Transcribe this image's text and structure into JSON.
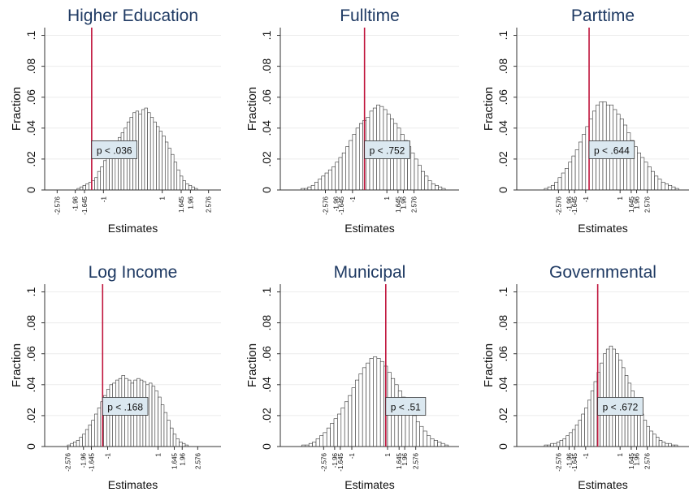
{
  "figure": {
    "colors": {
      "title": "#1f3a63",
      "bar_fill": "#ffffff",
      "bar_stroke": "#333333",
      "vline": "#c0143c",
      "grid": "#ececec",
      "annot_fill": "#dbe8f0",
      "annot_stroke": "#333333"
    }
  },
  "chart_data": [
    {
      "type": "bar",
      "title": "Higher Education",
      "xlabel": "Estimates",
      "ylabel": "Fraction",
      "xlim": [
        -3.0,
        3.0
      ],
      "ylim": [
        0,
        0.105
      ],
      "yticks": [
        0,
        0.02,
        0.04,
        0.06,
        0.08,
        0.1
      ],
      "ytick_labels": [
        "0",
        ".02",
        ".04",
        ".06",
        ".08",
        ".1"
      ],
      "xticks": [
        -2.576,
        -1.96,
        -1.645,
        -1,
        1,
        1.645,
        1.96,
        2.576
      ],
      "xtick_labels": [
        "-2.576",
        "-1.96",
        "-1.645",
        "-1",
        "1",
        "1.645",
        "1.96",
        "2.576"
      ],
      "bin_start": -1.9,
      "bin_width": 0.1,
      "values": [
        0.001,
        0.002,
        0.003,
        0.004,
        0.005,
        0.006,
        0.008,
        0.012,
        0.015,
        0.019,
        0.022,
        0.025,
        0.028,
        0.031,
        0.034,
        0.037,
        0.04,
        0.044,
        0.047,
        0.05,
        0.051,
        0.049,
        0.052,
        0.053,
        0.05,
        0.047,
        0.044,
        0.041,
        0.038,
        0.035,
        0.031,
        0.027,
        0.023,
        0.018,
        0.013,
        0.009,
        0.006,
        0.004,
        0.003,
        0.002,
        0.001
      ],
      "vline": -1.4,
      "annotation": "p < .036",
      "annot_x": -1.4,
      "annot_y": 0.026
    },
    {
      "type": "bar",
      "title": "Fulltime",
      "xlabel": "Estimates",
      "ylabel": "Fraction",
      "xlim": [
        -5.2,
        5.2
      ],
      "ylim": [
        0,
        0.105
      ],
      "yticks": [
        0,
        0.02,
        0.04,
        0.06,
        0.08,
        0.1
      ],
      "ytick_labels": [
        "0",
        ".02",
        ".04",
        ".06",
        ".08",
        ".1"
      ],
      "xticks": [
        -2.576,
        -1.96,
        -1.645,
        -1,
        1,
        1.645,
        1.96,
        2.576
      ],
      "xtick_labels": [
        "-2.576",
        "-1.96",
        "-1.645",
        "-1",
        "1",
        "1.645",
        "1.96",
        "2.576"
      ],
      "bin_start": -4.0,
      "bin_width": 0.2,
      "values": [
        0.001,
        0.001,
        0.002,
        0.003,
        0.005,
        0.007,
        0.009,
        0.011,
        0.013,
        0.015,
        0.018,
        0.021,
        0.024,
        0.028,
        0.032,
        0.036,
        0.04,
        0.043,
        0.045,
        0.047,
        0.051,
        0.053,
        0.055,
        0.054,
        0.052,
        0.049,
        0.046,
        0.043,
        0.04,
        0.036,
        0.032,
        0.028,
        0.024,
        0.02,
        0.016,
        0.012,
        0.009,
        0.006,
        0.004,
        0.003,
        0.002,
        0.001
      ],
      "vline": -0.3,
      "annotation": "p < .752",
      "annot_x": -0.3,
      "annot_y": 0.026
    },
    {
      "type": "bar",
      "title": "Parttime",
      "xlabel": "Estimates",
      "ylabel": "Fraction",
      "xlim": [
        -5.0,
        5.0
      ],
      "ylim": [
        0,
        0.105
      ],
      "yticks": [
        0,
        0.02,
        0.04,
        0.06,
        0.08,
        0.1
      ],
      "ytick_labels": [
        "0",
        ".02",
        ".04",
        ".06",
        ".08",
        ".1"
      ],
      "xticks": [
        -2.576,
        -1.96,
        -1.645,
        -1,
        1,
        1.645,
        1.96,
        2.576
      ],
      "xtick_labels": [
        "-2.576",
        "-1.96",
        "-1.645",
        "-1",
        "1",
        "1.645",
        "1.96",
        "2.576"
      ],
      "bin_start": -3.4,
      "bin_width": 0.2,
      "values": [
        0.001,
        0.002,
        0.003,
        0.005,
        0.008,
        0.011,
        0.014,
        0.018,
        0.022,
        0.026,
        0.031,
        0.036,
        0.041,
        0.046,
        0.051,
        0.055,
        0.057,
        0.057,
        0.055,
        0.055,
        0.052,
        0.049,
        0.046,
        0.042,
        0.037,
        0.032,
        0.028,
        0.024,
        0.021,
        0.018,
        0.015,
        0.012,
        0.009,
        0.007,
        0.005,
        0.004,
        0.003,
        0.002,
        0.001
      ],
      "vline": -0.8,
      "annotation": "p < .644",
      "annot_x": -0.8,
      "annot_y": 0.026
    },
    {
      "type": "bar",
      "title": "Log Income",
      "xlabel": "Estimates",
      "ylabel": "Fraction",
      "xlim": [
        -3.5,
        3.5
      ],
      "ylim": [
        0,
        0.105
      ],
      "yticks": [
        0,
        0.02,
        0.04,
        0.06,
        0.08,
        0.1
      ],
      "ytick_labels": [
        "0",
        ".02",
        ".04",
        ".06",
        ".08",
        ".1"
      ],
      "xticks": [
        -2.576,
        -1.96,
        -1.645,
        -1,
        1,
        1.645,
        1.96,
        2.576
      ],
      "xtick_labels": [
        "-2.576",
        "-1.96",
        "-1.645",
        "-1",
        "1",
        "1.645",
        "1.96",
        "2.576"
      ],
      "bin_start": -2.6,
      "bin_width": 0.12,
      "values": [
        0.001,
        0.002,
        0.003,
        0.004,
        0.006,
        0.008,
        0.011,
        0.014,
        0.017,
        0.021,
        0.025,
        0.029,
        0.033,
        0.037,
        0.04,
        0.041,
        0.043,
        0.044,
        0.046,
        0.044,
        0.043,
        0.041,
        0.043,
        0.044,
        0.043,
        0.042,
        0.04,
        0.041,
        0.039,
        0.036,
        0.032,
        0.027,
        0.022,
        0.017,
        0.012,
        0.008,
        0.005,
        0.003,
        0.002,
        0.001
      ],
      "vline": -1.2,
      "annotation": "p < .168",
      "annot_x": -1.2,
      "annot_y": 0.026
    },
    {
      "type": "bar",
      "title": "Municipal",
      "xlabel": "Estimates",
      "ylabel": "Fraction",
      "xlim": [
        -5.0,
        5.0
      ],
      "ylim": [
        0,
        0.105
      ],
      "yticks": [
        0,
        0.02,
        0.04,
        0.06,
        0.08,
        0.1
      ],
      "ytick_labels": [
        "0",
        ".02",
        ".04",
        ".06",
        ".08",
        ".1"
      ],
      "xticks": [
        -2.576,
        -1.96,
        -1.645,
        -1,
        1,
        1.645,
        1.96,
        2.576
      ],
      "xtick_labels": [
        "-2.576",
        "-1.96",
        "-1.645",
        "-1",
        "1",
        "1.645",
        "1.96",
        "2.576"
      ],
      "bin_start": -3.8,
      "bin_width": 0.2,
      "values": [
        0.001,
        0.001,
        0.002,
        0.003,
        0.005,
        0.007,
        0.009,
        0.012,
        0.015,
        0.018,
        0.021,
        0.025,
        0.029,
        0.033,
        0.038,
        0.043,
        0.047,
        0.051,
        0.054,
        0.057,
        0.058,
        0.057,
        0.055,
        0.052,
        0.048,
        0.044,
        0.04,
        0.036,
        0.032,
        0.028,
        0.024,
        0.02,
        0.016,
        0.013,
        0.01,
        0.007,
        0.005,
        0.004,
        0.003,
        0.002,
        0.001
      ],
      "vline": 0.9,
      "annotation": "p < .51",
      "annot_x": 0.9,
      "annot_y": 0.026
    },
    {
      "type": "bar",
      "title": "Governmental",
      "xlabel": "Estimates",
      "ylabel": "Fraction",
      "xlim": [
        -5.0,
        5.0
      ],
      "ylim": [
        0,
        0.105
      ],
      "yticks": [
        0,
        0.02,
        0.04,
        0.06,
        0.08,
        0.1
      ],
      "ytick_labels": [
        "0",
        ".02",
        ".04",
        ".06",
        ".08",
        ".1"
      ],
      "xticks": [
        -2.576,
        -1.96,
        -1.645,
        -1,
        1,
        1.645,
        1.96,
        2.576
      ],
      "xtick_labels": [
        "-2.576",
        "-1.96",
        "-1.645",
        "-1",
        "1",
        "1.645",
        "1.96",
        "2.576"
      ],
      "bin_start": -3.4,
      "bin_width": 0.18,
      "values": [
        0.001,
        0.001,
        0.002,
        0.002,
        0.003,
        0.004,
        0.005,
        0.007,
        0.009,
        0.011,
        0.014,
        0.017,
        0.021,
        0.025,
        0.03,
        0.036,
        0.042,
        0.048,
        0.054,
        0.06,
        0.063,
        0.065,
        0.063,
        0.06,
        0.056,
        0.051,
        0.046,
        0.041,
        0.036,
        0.031,
        0.026,
        0.021,
        0.017,
        0.013,
        0.01,
        0.008,
        0.006,
        0.004,
        0.003,
        0.002,
        0.002,
        0.001,
        0.001
      ],
      "vline": -0.3,
      "annotation": "p < .672",
      "annot_x": -0.3,
      "annot_y": 0.026
    }
  ]
}
